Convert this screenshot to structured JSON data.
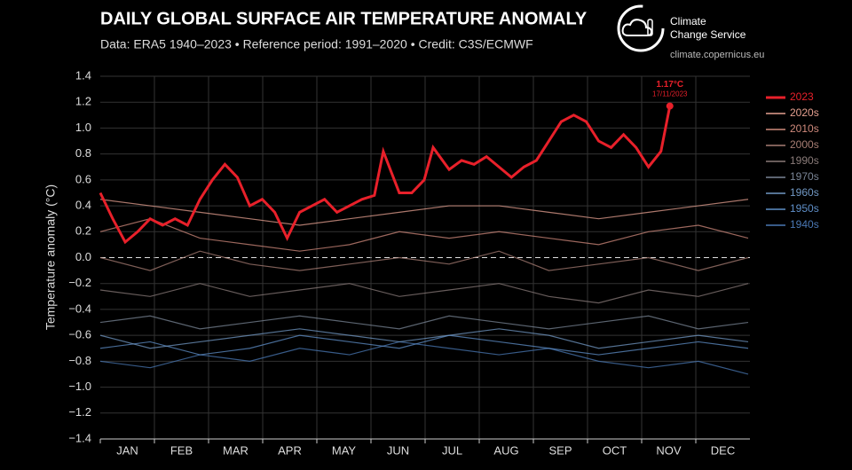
{
  "chart_data": {
    "type": "line",
    "title": "DAILY GLOBAL SURFACE AIR TEMPERATURE ANOMALY",
    "subtitle": "Data: ERA5 1940–2023 • Reference period: 1991–2020 • Credit: C3S/ECMWF",
    "brand": "Climate Change Service",
    "url": "climate.copernicus.eu",
    "y_label": "Temperature anomaly (°C)",
    "annotation_date": "17/11/2023",
    "categories": [
      "JAN",
      "FEB",
      "MAR",
      "APR",
      "MAY",
      "JUN",
      "JUL",
      "AUG",
      "SEP",
      "OCT",
      "NOV",
      "DEC"
    ],
    "xlim": [
      1,
      366
    ],
    "ylim": [
      -1.4,
      1.4
    ],
    "yticks": [
      {
        "value": -1.4,
        "label": "−1.4"
      },
      {
        "value": -1.2,
        "label": "−1.2"
      },
      {
        "value": -1,
        "label": "−1.0"
      },
      {
        "value": -0.8,
        "label": "−0.8"
      },
      {
        "value": -0.6,
        "label": "−0.6"
      },
      {
        "value": -0.4,
        "label": "−0.4"
      },
      {
        "value": -0.2,
        "label": "−0.2"
      },
      {
        "value": 0,
        "label": "0.0"
      },
      {
        "value": 0.2,
        "label": "0.2"
      },
      {
        "value": 0.4,
        "label": "0.4"
      },
      {
        "value": 0.6,
        "label": "0.6"
      },
      {
        "value": 0.8,
        "label": "0.8"
      },
      {
        "value": 1,
        "label": "1.0"
      },
      {
        "value": 1.2,
        "label": "1.2"
      },
      {
        "value": 1.4,
        "label": "1.4"
      }
    ],
    "grid": true,
    "series": [
      {
        "name": "2023",
        "color": "#e8202a",
        "x": [
          1,
          8,
          15,
          22,
          29,
          36,
          43,
          50,
          57,
          64,
          71,
          78,
          85,
          92,
          99,
          106,
          113,
          120,
          127,
          134,
          141,
          148,
          155,
          160,
          169,
          176,
          183,
          188,
          197,
          204,
          211,
          218,
          225,
          232,
          239,
          246,
          253,
          260,
          267,
          274,
          281,
          288,
          295,
          302,
          309,
          316,
          321
        ],
        "values": [
          0.5,
          0.3,
          0.12,
          0.2,
          0.3,
          0.25,
          0.3,
          0.25,
          0.45,
          0.6,
          0.72,
          0.62,
          0.4,
          0.45,
          0.35,
          0.15,
          0.35,
          0.4,
          0.45,
          0.35,
          0.4,
          0.45,
          0.48,
          0.82,
          0.5,
          0.5,
          0.6,
          0.85,
          0.68,
          0.75,
          0.72,
          0.78,
          0.7,
          0.62,
          0.7,
          0.75,
          0.9,
          1.05,
          1.1,
          1.05,
          0.9,
          0.85,
          0.95,
          0.85,
          0.7,
          0.82,
          1.17
        ],
        "value_labels": [
          null,
          null,
          null,
          null,
          null,
          null,
          null,
          null,
          null,
          null,
          null,
          null,
          null,
          null,
          null,
          null,
          null,
          null,
          null,
          null,
          null,
          null,
          null,
          null,
          null,
          null,
          null,
          null,
          null,
          null,
          null,
          null,
          null,
          null,
          null,
          null,
          null,
          null,
          null,
          null,
          null,
          null,
          null,
          null,
          null,
          null,
          "1.17°C"
        ]
      },
      {
        "name": "2020s",
        "color": "#e6a090",
        "x": [
          1,
          29,
          57,
          85,
          113,
          141,
          169,
          197,
          225,
          253,
          281,
          309,
          337,
          365
        ],
        "values": [
          0.45,
          0.4,
          0.35,
          0.3,
          0.25,
          0.3,
          0.35,
          0.4,
          0.4,
          0.35,
          0.3,
          0.35,
          0.4,
          0.45
        ]
      },
      {
        "name": "2010s",
        "color": "#d08a7c",
        "x": [
          1,
          29,
          57,
          85,
          113,
          141,
          169,
          197,
          225,
          253,
          281,
          309,
          337,
          365
        ],
        "values": [
          0.2,
          0.3,
          0.15,
          0.1,
          0.05,
          0.1,
          0.2,
          0.15,
          0.2,
          0.15,
          0.1,
          0.2,
          0.25,
          0.15
        ]
      },
      {
        "name": "2000s",
        "color": "#a87e74",
        "x": [
          1,
          29,
          57,
          85,
          113,
          141,
          169,
          197,
          225,
          253,
          281,
          309,
          337,
          365
        ],
        "values": [
          0,
          -0.1,
          0.05,
          -0.05,
          -0.1,
          -0.05,
          0,
          -0.05,
          0.05,
          -0.1,
          -0.05,
          0,
          -0.1,
          0
        ]
      },
      {
        "name": "1990s",
        "color": "#8a7b79",
        "x": [
          1,
          29,
          57,
          85,
          113,
          141,
          169,
          197,
          225,
          253,
          281,
          309,
          337,
          365
        ],
        "values": [
          -0.25,
          -0.3,
          -0.2,
          -0.3,
          -0.25,
          -0.2,
          -0.3,
          -0.25,
          -0.2,
          -0.3,
          -0.35,
          -0.25,
          -0.3,
          -0.2
        ]
      },
      {
        "name": "1970s",
        "color": "#7a8596",
        "x": [
          1,
          29,
          57,
          85,
          113,
          141,
          169,
          197,
          225,
          253,
          281,
          309,
          337,
          365
        ],
        "values": [
          -0.5,
          -0.45,
          -0.55,
          -0.5,
          -0.45,
          -0.5,
          -0.55,
          -0.45,
          -0.5,
          -0.55,
          -0.5,
          -0.45,
          -0.55,
          -0.5
        ]
      },
      {
        "name": "1960s",
        "color": "#7198c4",
        "x": [
          1,
          29,
          57,
          85,
          113,
          141,
          169,
          197,
          225,
          253,
          281,
          309,
          337,
          365
        ],
        "values": [
          -0.6,
          -0.7,
          -0.65,
          -0.6,
          -0.55,
          -0.6,
          -0.65,
          -0.6,
          -0.55,
          -0.6,
          -0.7,
          -0.65,
          -0.6,
          -0.65
        ]
      },
      {
        "name": "1950s",
        "color": "#5f8fc8",
        "x": [
          1,
          29,
          57,
          85,
          113,
          141,
          169,
          197,
          225,
          253,
          281,
          309,
          337,
          365
        ],
        "values": [
          -0.7,
          -0.65,
          -0.75,
          -0.7,
          -0.6,
          -0.65,
          -0.7,
          -0.6,
          -0.65,
          -0.7,
          -0.75,
          -0.7,
          -0.65,
          -0.7
        ]
      },
      {
        "name": "1940s",
        "color": "#4a78b4",
        "x": [
          1,
          29,
          57,
          85,
          113,
          141,
          169,
          197,
          225,
          253,
          281,
          309,
          337,
          365
        ],
        "values": [
          -0.8,
          -0.85,
          -0.75,
          -0.8,
          -0.7,
          -0.75,
          -0.65,
          -0.7,
          -0.75,
          -0.7,
          -0.8,
          -0.85,
          -0.8,
          -0.9
        ]
      }
    ]
  }
}
